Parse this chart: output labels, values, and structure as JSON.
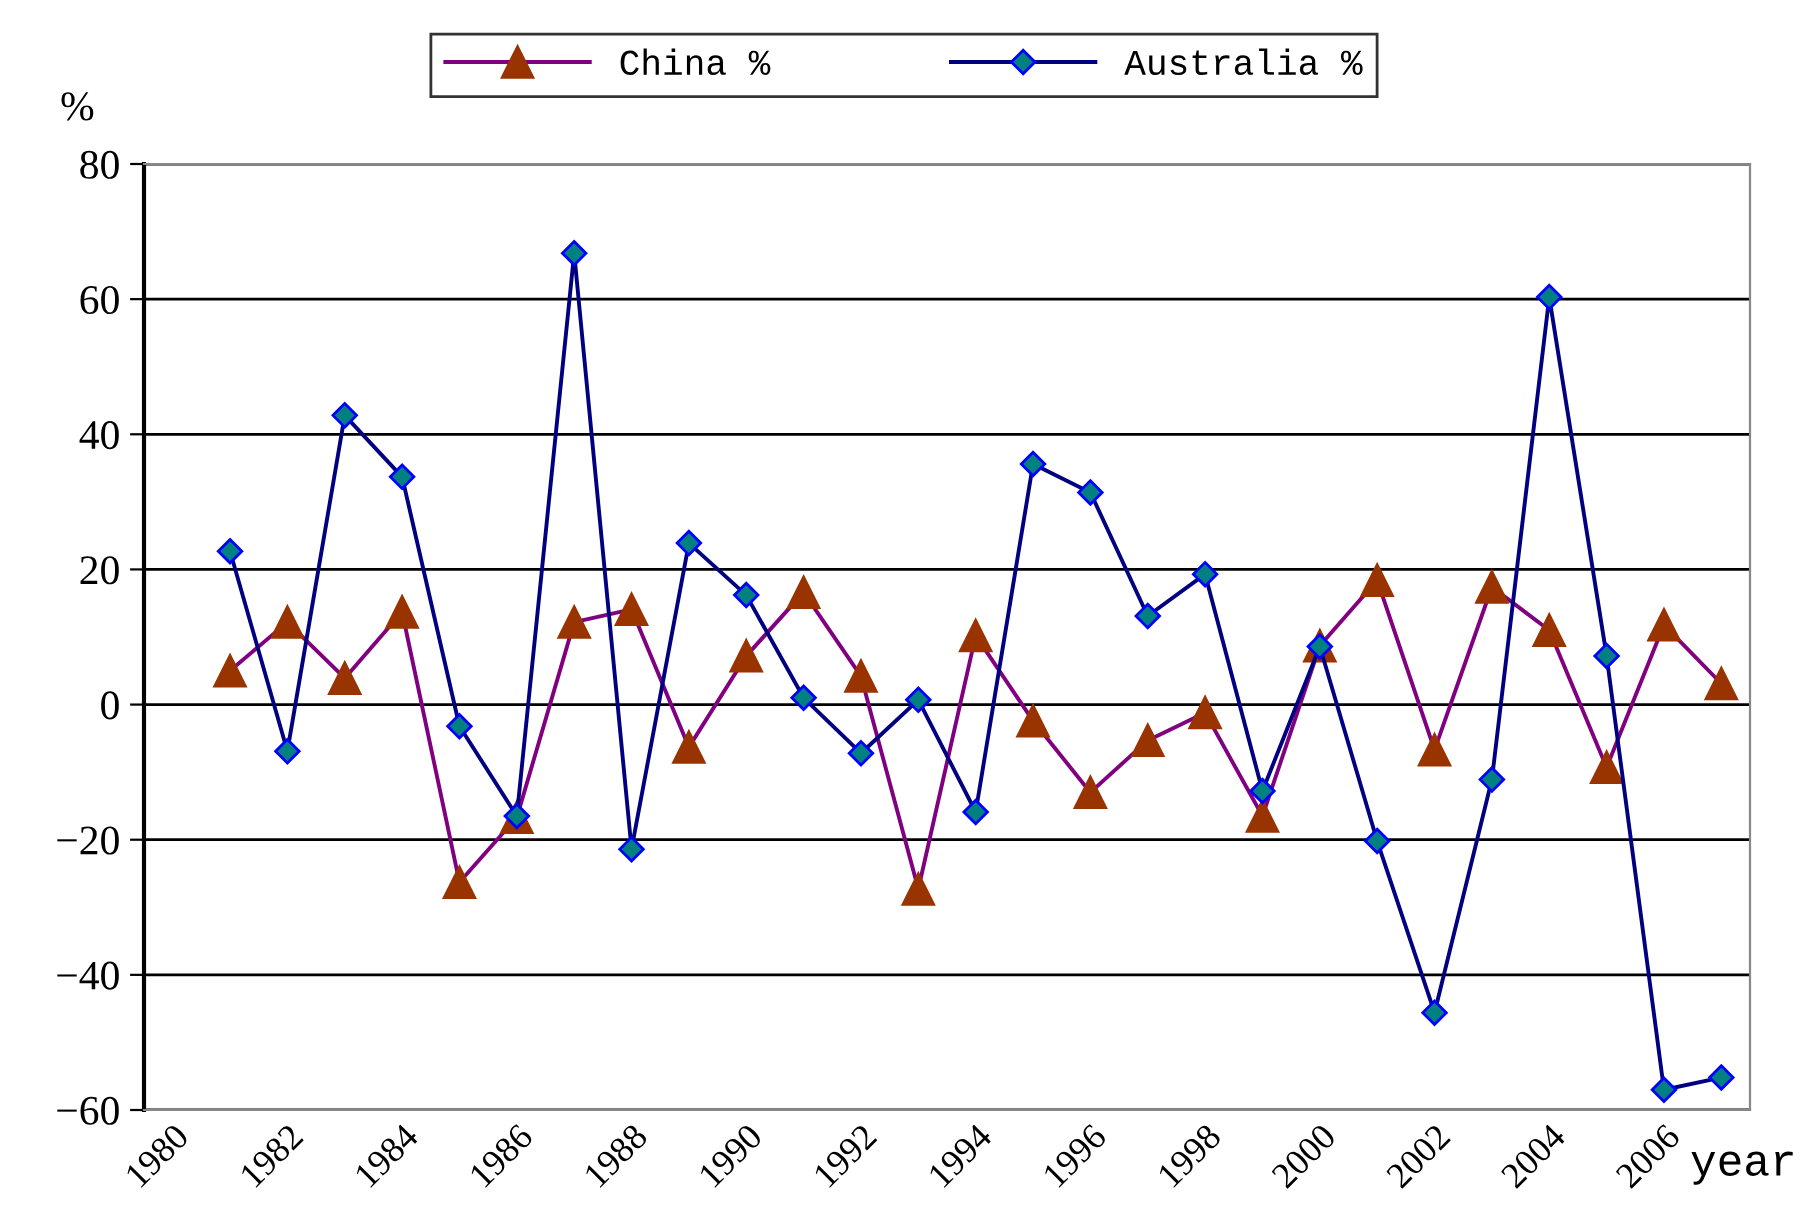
{
  "chart_data": {
    "type": "line",
    "ylabel": "%",
    "xlabel": "year",
    "categories": [
      "1980",
      null,
      "1982",
      null,
      "1984",
      null,
      "1986",
      null,
      "1988",
      null,
      "1990",
      null,
      "1992",
      null,
      "1994",
      null,
      "1996",
      null,
      "1998",
      null,
      "2000",
      null,
      "2002",
      null,
      "2004",
      null,
      "2006",
      null
    ],
    "series": [
      {
        "name": "China %",
        "color": "#800080",
        "marker": "triangle",
        "values": [
          null,
          5.0,
          12.2,
          3.9,
          13.7,
          -26.3,
          -16.7,
          12.2,
          14.1,
          -6.3,
          7.2,
          16.6,
          4.2,
          -27.3,
          10.2,
          -2.4,
          -13.0,
          -5.3,
          -1.2,
          -16.5,
          8.7,
          18.4,
          -6.7,
          17.4,
          11.0,
          -9.3,
          11.8,
          3.1
        ]
      },
      {
        "name": "Australia %",
        "color": "#000080",
        "marker": "diamond",
        "values": [
          null,
          22.7,
          -6.9,
          42.8,
          33.7,
          -3.2,
          -16.5,
          66.8,
          -21.4,
          23.9,
          16.2,
          1.0,
          -7.2,
          0.7,
          -15.9,
          35.6,
          31.4,
          13.1,
          19.3,
          -12.8,
          8.6,
          -20.2,
          -45.6,
          -11.1,
          60.3,
          7.2,
          -57.0,
          -55.2
        ]
      }
    ],
    "ylim": [
      -60,
      80
    ],
    "yticks": [
      -60,
      -40,
      -20,
      0,
      20,
      40,
      60,
      80
    ],
    "grid": "y",
    "legend": "top",
    "line_style": "solid"
  }
}
